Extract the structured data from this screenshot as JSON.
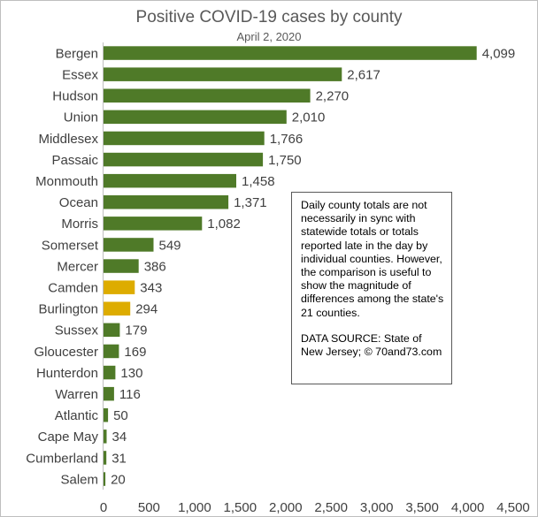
{
  "chart_data": {
    "type": "bar",
    "orientation": "horizontal",
    "title": "Positive COVID-19 cases by county",
    "subtitle": "April 2, 2020",
    "categories": [
      "Bergen",
      "Essex",
      "Hudson",
      "Union",
      "Middlesex",
      "Passaic",
      "Monmouth",
      "Ocean",
      "Morris",
      "Somerset",
      "Mercer",
      "Camden",
      "Burlington",
      "Sussex",
      "Gloucester",
      "Hunterdon",
      "Warren",
      "Atlantic",
      "Cape May",
      "Cumberland",
      "Salem"
    ],
    "values": [
      4099,
      2617,
      2270,
      2010,
      1766,
      1750,
      1458,
      1371,
      1082,
      549,
      386,
      343,
      294,
      179,
      169,
      130,
      116,
      50,
      34,
      31,
      20
    ],
    "value_labels": [
      "4,099",
      "2,617",
      "2,270",
      "2,010",
      "1,766",
      "1,750",
      "1,458",
      "1,371",
      "1,082",
      "549",
      "386",
      "343",
      "294",
      "179",
      "169",
      "130",
      "116",
      "50",
      "34",
      "31",
      "20"
    ],
    "highlight": [
      "Camden",
      "Burlington"
    ],
    "colors": {
      "bar": "#4f7a28",
      "highlight": "#ddac00"
    },
    "xlim": [
      0,
      4500
    ],
    "x_ticks": [
      0,
      500,
      1000,
      1500,
      2000,
      2500,
      3000,
      3500,
      4000,
      4500
    ],
    "x_tick_labels": [
      "0",
      "500",
      "1,000",
      "1,500",
      "2,000",
      "2,500",
      "3,000",
      "3,500",
      "4,000",
      "4,500"
    ],
    "grid": false,
    "xlabel": "",
    "ylabel": ""
  },
  "note": {
    "paragraph1": "Daily county totals are not necessarily in sync with statewide totals or totals reported late in the day by individual counties. However, the comparison is useful to show the magnitude of differences among the state's 21 counties.",
    "paragraph2": "DATA SOURCE: State of New Jersey; © 70and73.com"
  }
}
